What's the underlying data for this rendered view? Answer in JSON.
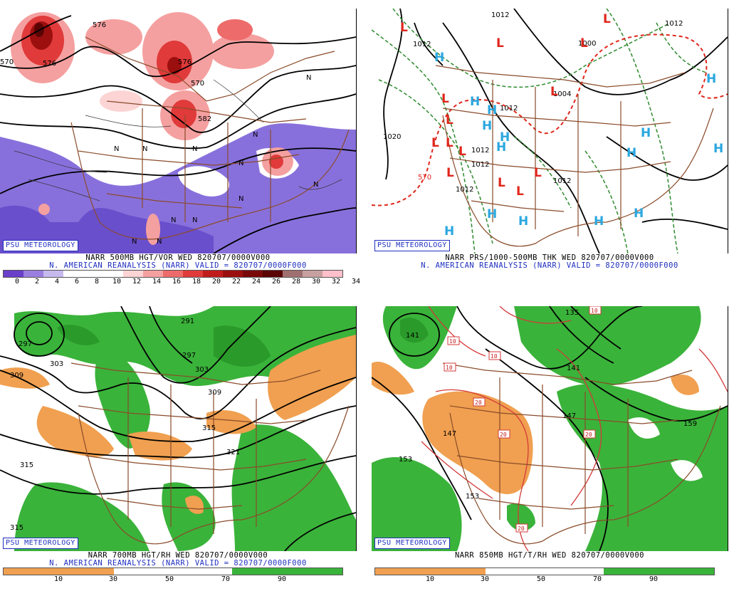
{
  "badge": "PSU METEOROLOGY",
  "panels": [
    {
      "id": "p1",
      "line1": "NARR 500MB HGT/VOR WED 820707/0000V000",
      "line2": "N. AMERICAN REANALYSIS (NARR) VALID = 820707/0000F000",
      "colorbar": {
        "colors": [
          "#6a3fc9",
          "#9b7fe0",
          "#c6b9ee",
          "#ffffff",
          "#ffffff",
          "#ffffff",
          "#fcd4d4",
          "#f5a0a0",
          "#ee6b6b",
          "#e03a3a",
          "#c01c1c",
          "#9c0f0f",
          "#7a0808",
          "#5a0404",
          "#a07070",
          "#c8a0a0",
          "#ffc0cb"
        ],
        "ticks": [
          "0",
          "2",
          "4",
          "6",
          "8",
          "10",
          "12",
          "14",
          "16",
          "18",
          "20",
          "22",
          "24",
          "26",
          "28",
          "30",
          "32",
          "34"
        ]
      },
      "contour_labels": [
        "576",
        "576",
        "570",
        "570",
        "576",
        "582"
      ]
    },
    {
      "id": "p2",
      "line1": "NARR PRS/1000-500MB THK WED 820707/0000V000",
      "line2": "N. AMERICAN REANALYSIS (NARR) VALID = 820707/0000F000",
      "contour_labels": [
        "1012",
        "1012",
        "1012",
        "1012",
        "1012",
        "1012",
        "1020",
        "1012",
        "1004",
        "570"
      ],
      "highs": "H",
      "lows": "L"
    },
    {
      "id": "p3",
      "line1": "NARR 700MB HGT/RH WED 820707/0000V000",
      "line2": "N. AMERICAN REANALYSIS (NARR) VALID = 820707/0000F000",
      "colorbar": {
        "ticks": [
          "10",
          "30",
          "50",
          "70",
          "90"
        ]
      },
      "contour_labels": [
        "297",
        "303",
        "309",
        "291",
        "297",
        "303",
        "309",
        "315",
        "321",
        "315",
        "315"
      ]
    },
    {
      "id": "p4",
      "line1": "NARR 850MB HGT/T/RH WED 820707/0000V000",
      "colorbar": {
        "ticks": [
          "10",
          "30",
          "50",
          "70",
          "90"
        ]
      },
      "contour_labels": [
        "141",
        "135",
        "141",
        "147",
        "147",
        "153",
        "153",
        "159"
      ],
      "temp_labels": [
        "10",
        "10",
        "10",
        "20",
        "20",
        "20",
        "20",
        "10"
      ]
    }
  ]
}
